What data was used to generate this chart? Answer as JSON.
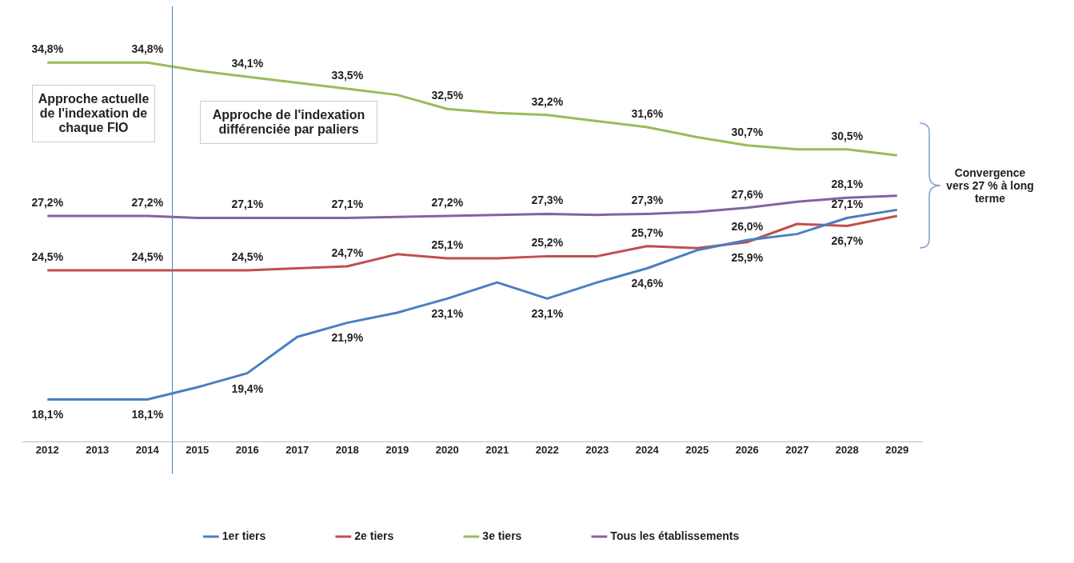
{
  "chart_data": {
    "type": "line",
    "x": [
      2012,
      2013,
      2014,
      2015,
      2016,
      2017,
      2018,
      2019,
      2020,
      2021,
      2022,
      2023,
      2024,
      2025,
      2026,
      2027,
      2028,
      2029
    ],
    "xlim": [
      2011.5,
      2029.5
    ],
    "xticks": [
      2012,
      2013,
      2014,
      2015,
      2016,
      2017,
      2018,
      2019,
      2020,
      2021,
      2022,
      2023,
      2024,
      2025,
      2026,
      2027,
      2028,
      2029
    ],
    "tick_labels": "x",
    "grid": false,
    "legend": "bottom",
    "marker": "none",
    "line_style": "solid",
    "series": [
      {
        "name": "1er tiers",
        "color": "#4a7fc1",
        "values": [
          18.1,
          18.1,
          18.1,
          18.7,
          19.4,
          21.2,
          21.9,
          22.4,
          23.1,
          23.9,
          23.1,
          23.9,
          24.6,
          25.5,
          26.0,
          26.3,
          27.1,
          27.5
        ],
        "value_labels": [
          "18,1%",
          null,
          "18,1%",
          null,
          "19,4%",
          null,
          "21,9%",
          null,
          "23,1%",
          null,
          "23,1%",
          null,
          "24,6%",
          null,
          "26,0%",
          null,
          "27,1%",
          null
        ]
      },
      {
        "name": "2e tiers",
        "color": "#c0504d",
        "values": [
          24.5,
          24.5,
          24.5,
          24.5,
          24.5,
          24.6,
          24.7,
          25.3,
          25.1,
          25.1,
          25.2,
          25.2,
          25.7,
          25.6,
          25.9,
          26.8,
          26.7,
          27.2
        ],
        "value_labels": [
          "24,5%",
          null,
          "24,5%",
          null,
          "24,5%",
          null,
          "24,7%",
          null,
          "25,1%",
          null,
          "25,2%",
          null,
          "25,7%",
          null,
          "25,9%",
          null,
          "26,7%",
          null
        ]
      },
      {
        "name": "3e tiers",
        "color": "#9bbb59",
        "values": [
          34.8,
          34.8,
          34.8,
          34.4,
          34.1,
          33.8,
          33.5,
          33.2,
          32.5,
          32.3,
          32.2,
          31.9,
          31.6,
          31.1,
          30.7,
          30.5,
          30.5,
          30.2
        ],
        "value_labels": [
          "34,8%",
          null,
          "34,8%",
          null,
          "34,1%",
          null,
          "33,5%",
          null,
          "32,5%",
          null,
          "32,2%",
          null,
          "31,6%",
          null,
          "30,7%",
          null,
          "30,5%",
          null
        ]
      },
      {
        "name": "Tous les établissements",
        "color": "#8064a2",
        "values": [
          27.2,
          27.2,
          27.2,
          27.1,
          27.1,
          27.1,
          27.1,
          27.15,
          27.2,
          27.25,
          27.3,
          27.25,
          27.3,
          27.4,
          27.6,
          27.9,
          28.1,
          28.2
        ],
        "value_labels": [
          "27,2%",
          null,
          "27,2%",
          null,
          "27,1%",
          null,
          "27,1%",
          null,
          "27,2%",
          null,
          "27,3%",
          null,
          "27,3%",
          null,
          "27,6%",
          null,
          "28,1%",
          null
        ]
      }
    ],
    "ref_lines": [
      {
        "axis": "x",
        "value": 2014.5,
        "color": "#4a7fc1"
      }
    ],
    "annotations": [
      "Approche actuelle de l'indexation de chaque FIO",
      "Approche de l'indexation différenciée par paliers",
      "Convergence vers 27 % à long terme"
    ]
  }
}
